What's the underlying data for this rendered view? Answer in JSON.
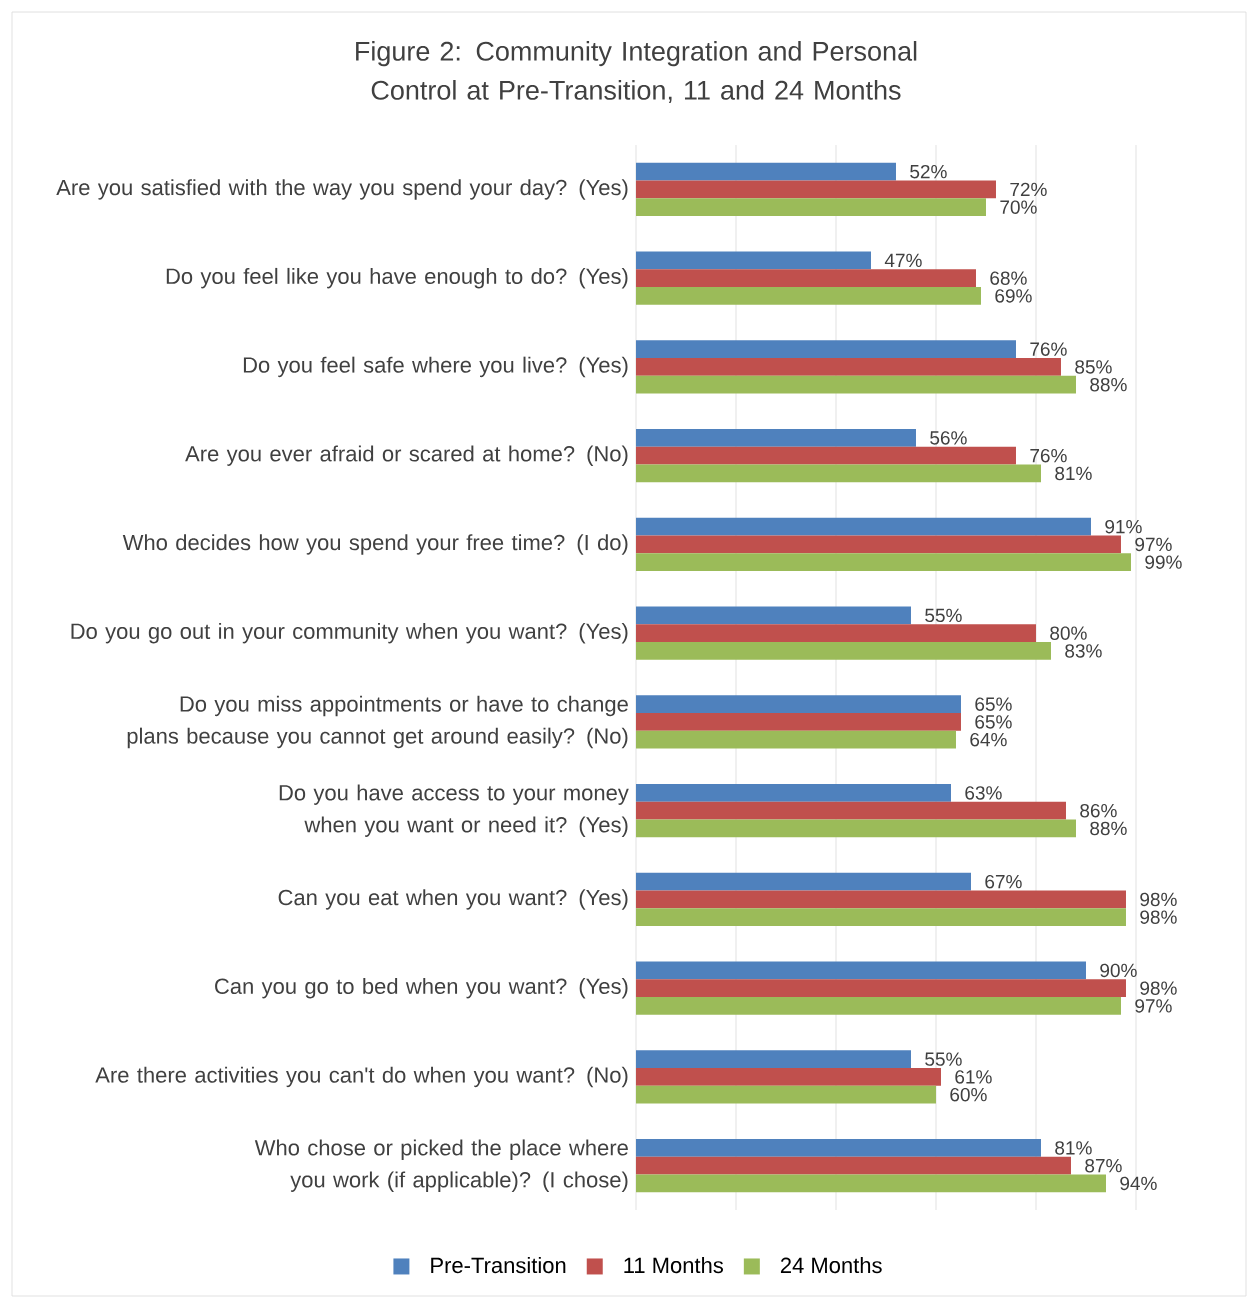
{
  "chart_data": {
    "type": "bar",
    "orientation": "horizontal",
    "title": "Figure 2:  Community Integration and Personal Control at Pre-Transition, 11 and 24 Months",
    "categories": [
      "Are you satisfied with the way you spend your day? (Yes)",
      "Do you feel like you have enough to do? (Yes)",
      "Do you feel safe where you live? (Yes)",
      "Are you ever afraid or scared at home? (No)",
      "Who decides how you spend your free time? (I do)",
      "Do you go out in your community when you want? (Yes)",
      "Do you miss appointments or have to change plans because you cannot get around easily? (No)",
      "Do you have access to your money when you want or need it? (Yes)",
      "Can you eat when you want? (Yes)",
      "Can you go to bed when you want? (Yes)",
      "Are there activities you can't do when you want? (No)",
      "Who chose or picked the place where you work (if applicable)? (I chose)"
    ],
    "series": [
      {
        "name": "Pre-Transition",
        "color": "#4f81bd",
        "values": [
          52,
          47,
          76,
          56,
          91,
          55,
          65,
          63,
          67,
          90,
          55,
          81
        ],
        "value_labels": [
          "52%",
          "47%",
          "76%",
          "56%",
          "91%",
          "55%",
          "65%",
          "63%",
          "67%",
          "90%",
          "55%",
          "81%"
        ]
      },
      {
        "name": "11 Months",
        "color": "#c0504d",
        "values": [
          72,
          68,
          85,
          76,
          97,
          80,
          65,
          86,
          98,
          98,
          61,
          87
        ],
        "value_labels": [
          "72%",
          "68%",
          "85%",
          "76%",
          "97%",
          "80%",
          "65%",
          "86%",
          "98%",
          "98%",
          "61%",
          "87%"
        ]
      },
      {
        "name": "24 Months",
        "color": "#9bbb59",
        "values": [
          70,
          69,
          88,
          81,
          99,
          83,
          64,
          88,
          98,
          97,
          60,
          94
        ],
        "value_labels": [
          "70%",
          "69%",
          "88%",
          "81%",
          "99%",
          "83%",
          "64%",
          "88%",
          "98%",
          "97%",
          "60%",
          "94%"
        ]
      }
    ],
    "xlim": [
      0,
      100
    ],
    "xticks": [
      {
        "value": 0,
        "label": null
      },
      {
        "value": 20,
        "label": null
      },
      {
        "value": 40,
        "label": null
      },
      {
        "value": 60,
        "label": null
      },
      {
        "value": 80,
        "label": null
      },
      {
        "value": 100,
        "label": null
      }
    ],
    "tick_labels": "y",
    "grid": "x",
    "legend": "bottom"
  }
}
